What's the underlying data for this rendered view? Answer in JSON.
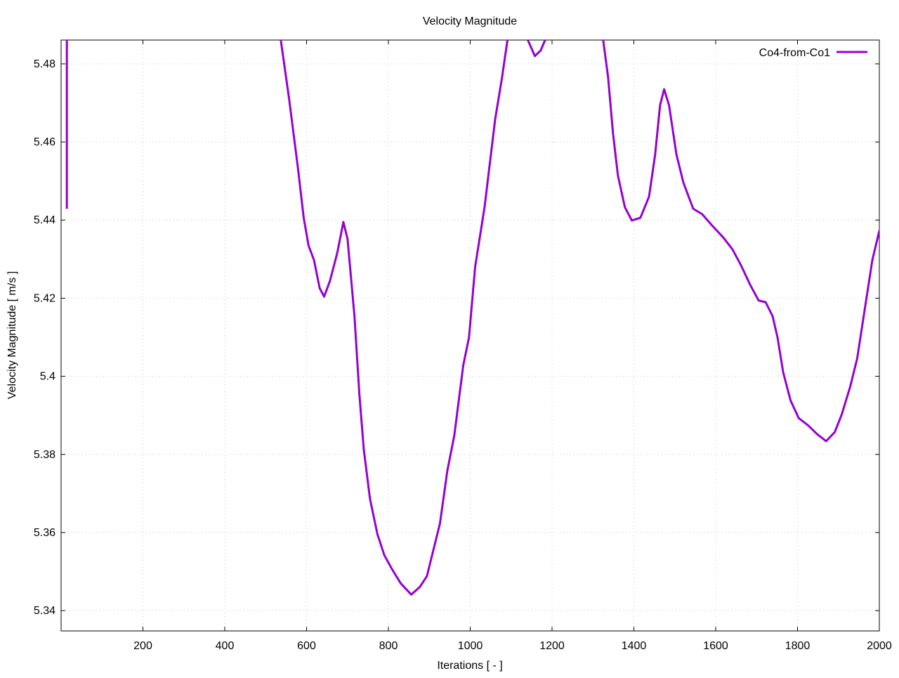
{
  "chart_data": {
    "type": "line",
    "title": "Velocity Magnitude",
    "xlabel": "Iterations [ - ]",
    "ylabel": "Velocity Magnitude [ m/s ]",
    "xlim": [
      0,
      2000
    ],
    "ylim": [
      5.3348,
      5.4861
    ],
    "xticks": [
      200,
      400,
      600,
      800,
      1000,
      1200,
      1400,
      1600,
      1800,
      2000
    ],
    "xtick_labels": [
      "200",
      "400",
      "600",
      "800",
      "1000",
      "1200",
      "1400",
      "1600",
      "1800",
      "2000"
    ],
    "yticks": [
      5.34,
      5.36,
      5.38,
      5.4,
      5.42,
      5.44,
      5.46,
      5.48
    ],
    "ytick_labels": [
      "5.34",
      "5.36",
      "5.38",
      "5.4",
      "5.42",
      "5.44",
      "5.46",
      "5.48"
    ],
    "grid": true,
    "legend": "top-right",
    "series": [
      {
        "name": "Co4-from-Co1",
        "color": "#9400d3",
        "points": [
          [
            14,
            5.4429
          ],
          [
            14,
            5.4861
          ],
          null,
          [
            537,
            5.4861
          ],
          [
            557,
            5.4712
          ],
          [
            579,
            5.4532
          ],
          [
            593,
            5.4406
          ],
          [
            605,
            5.4334
          ],
          [
            618,
            5.4298
          ],
          [
            632,
            5.4226
          ],
          [
            643,
            5.4204
          ],
          [
            657,
            5.4244
          ],
          [
            675,
            5.4316
          ],
          [
            690,
            5.4395
          ],
          [
            700,
            5.4352
          ],
          [
            717,
            5.4154
          ],
          [
            729,
            5.3956
          ],
          [
            740,
            5.3812
          ],
          [
            755,
            5.3686
          ],
          [
            773,
            5.3596
          ],
          [
            790,
            5.3542
          ],
          [
            809,
            5.3506
          ],
          [
            830,
            5.347
          ],
          [
            856,
            5.3441
          ],
          [
            877,
            5.3461
          ],
          [
            894,
            5.3488
          ],
          [
            911,
            5.356
          ],
          [
            926,
            5.3623
          ],
          [
            944,
            5.3758
          ],
          [
            961,
            5.3848
          ],
          [
            983,
            5.4028
          ],
          [
            997,
            5.41
          ],
          [
            1012,
            5.428
          ],
          [
            1035,
            5.4433
          ],
          [
            1061,
            5.4658
          ],
          [
            1078,
            5.4766
          ],
          [
            1091,
            5.4861
          ],
          null,
          [
            1141,
            5.4861
          ],
          [
            1158,
            5.482
          ],
          [
            1172,
            5.4834
          ],
          [
            1183,
            5.4861
          ],
          null,
          [
            1325,
            5.4861
          ],
          [
            1337,
            5.4766
          ],
          [
            1349,
            5.4622
          ],
          [
            1361,
            5.4514
          ],
          [
            1378,
            5.4433
          ],
          [
            1395,
            5.4399
          ],
          [
            1416,
            5.4406
          ],
          [
            1437,
            5.446
          ],
          [
            1452,
            5.4568
          ],
          [
            1464,
            5.4694
          ],
          [
            1474,
            5.4735
          ],
          [
            1486,
            5.4694
          ],
          [
            1504,
            5.4568
          ],
          [
            1521,
            5.4496
          ],
          [
            1545,
            5.4429
          ],
          [
            1567,
            5.4415
          ],
          [
            1593,
            5.4384
          ],
          [
            1619,
            5.4355
          ],
          [
            1641,
            5.4325
          ],
          [
            1662,
            5.4284
          ],
          [
            1684,
            5.4235
          ],
          [
            1705,
            5.4194
          ],
          [
            1722,
            5.419
          ],
          [
            1739,
            5.4154
          ],
          [
            1751,
            5.41
          ],
          [
            1765,
            5.401
          ],
          [
            1783,
            5.3938
          ],
          [
            1803,
            5.3893
          ],
          [
            1825,
            5.3875
          ],
          [
            1848,
            5.3852
          ],
          [
            1870,
            5.3834
          ],
          [
            1891,
            5.3857
          ],
          [
            1908,
            5.3902
          ],
          [
            1929,
            5.3974
          ],
          [
            1946,
            5.4046
          ],
          [
            1967,
            5.419
          ],
          [
            1983,
            5.4298
          ],
          [
            2000,
            5.4373
          ]
        ]
      }
    ]
  }
}
